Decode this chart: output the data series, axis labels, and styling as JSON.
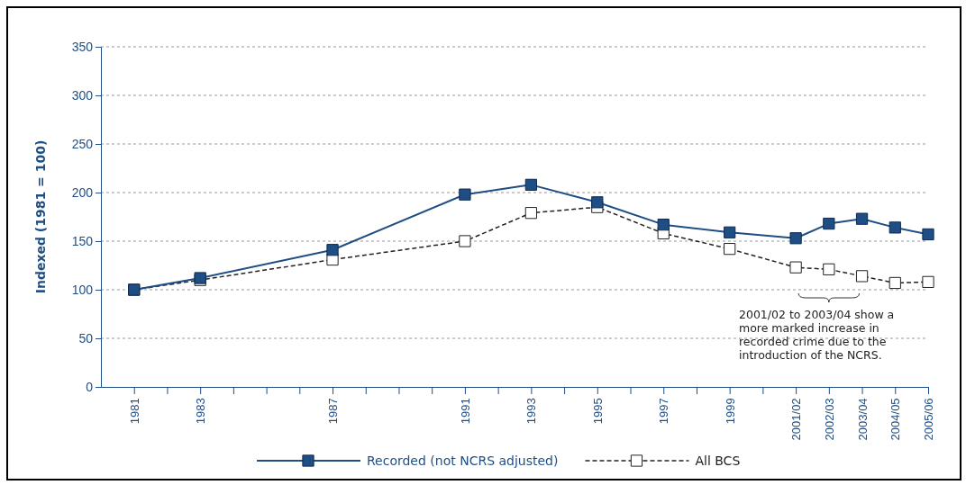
{
  "chart_data": {
    "type": "line",
    "ylabel": "Indexed (1981 = 100)",
    "xlim": [
      1980,
      2005
    ],
    "xticks": [
      {
        "value": 1981,
        "label": "1981"
      },
      {
        "value": 1982,
        "label": null
      },
      {
        "value": 1983,
        "label": "1983"
      },
      {
        "value": 1984,
        "label": null
      },
      {
        "value": 1985,
        "label": null
      },
      {
        "value": 1986,
        "label": null
      },
      {
        "value": 1987,
        "label": "1987"
      },
      {
        "value": 1988,
        "label": null
      },
      {
        "value": 1989,
        "label": null
      },
      {
        "value": 1990,
        "label": null
      },
      {
        "value": 1991,
        "label": "1991"
      },
      {
        "value": 1992,
        "label": null
      },
      {
        "value": 1993,
        "label": "1993"
      },
      {
        "value": 1994,
        "label": null
      },
      {
        "value": 1995,
        "label": "1995"
      },
      {
        "value": 1996,
        "label": null
      },
      {
        "value": 1997,
        "label": "1997"
      },
      {
        "value": 1998,
        "label": null
      },
      {
        "value": 1999,
        "label": "1999"
      },
      {
        "value": 2000,
        "label": null
      },
      {
        "value": 2001,
        "label": "2001/02"
      },
      {
        "value": 2002,
        "label": "2002/03"
      },
      {
        "value": 2003,
        "label": "2003/04"
      },
      {
        "value": 2004,
        "label": "2004/05"
      },
      {
        "value": 2005,
        "label": "2005/06"
      }
    ],
    "x": [
      1981,
      1983,
      1987,
      1991,
      1993,
      1995,
      1997,
      1999,
      2001,
      2002,
      2003,
      2004,
      2005
    ],
    "ylim": [
      0,
      350
    ],
    "yticks": [
      0,
      50,
      100,
      150,
      200,
      250,
      300,
      350
    ],
    "grid": "y",
    "legend": "bottom",
    "series": [
      {
        "name": "Recorded (not NCRS adjusted)",
        "color": "#1f4e85",
        "values": [
          100,
          112,
          141,
          198,
          208,
          190,
          167,
          159,
          153,
          168,
          173,
          164,
          157
        ],
        "marker": "square",
        "line_style": "solid"
      },
      {
        "name": "All BCS",
        "color": "#222222",
        "values": [
          100,
          110,
          131,
          150,
          179,
          185,
          158,
          142,
          123,
          121,
          114,
          107,
          108
        ],
        "marker": "square",
        "line_style": "dashed"
      }
    ],
    "annotations": [
      "2001/02 to 2003/04 show a more marked increase in recorded crime due to the introduction of the NCRS."
    ]
  }
}
